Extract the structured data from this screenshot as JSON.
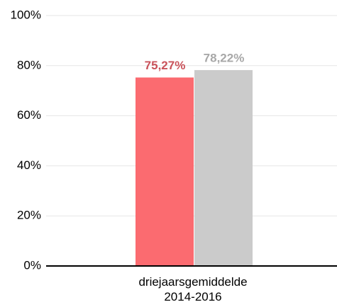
{
  "chart_data": {
    "type": "bar",
    "categories": [
      "driejaarsgemiddelde 2014-2016"
    ],
    "series": [
      {
        "color": "#fb6b70",
        "label_color": "#c9525a",
        "values": [
          75.27
        ],
        "value_labels": [
          "75,27%"
        ]
      },
      {
        "color": "#cbcbcb",
        "label_color": "#a8a8a8",
        "values": [
          78.22
        ],
        "value_labels": [
          "78,22%"
        ]
      }
    ],
    "ylim": [
      0,
      100
    ],
    "yticks": [
      {
        "value": 0,
        "label": "0%"
      },
      {
        "value": 20,
        "label": "20%"
      },
      {
        "value": 40,
        "label": "40%"
      },
      {
        "value": 60,
        "label": "60%"
      },
      {
        "value": 80,
        "label": "80%"
      },
      {
        "value": 100,
        "label": "100%"
      }
    ],
    "grid": true
  }
}
